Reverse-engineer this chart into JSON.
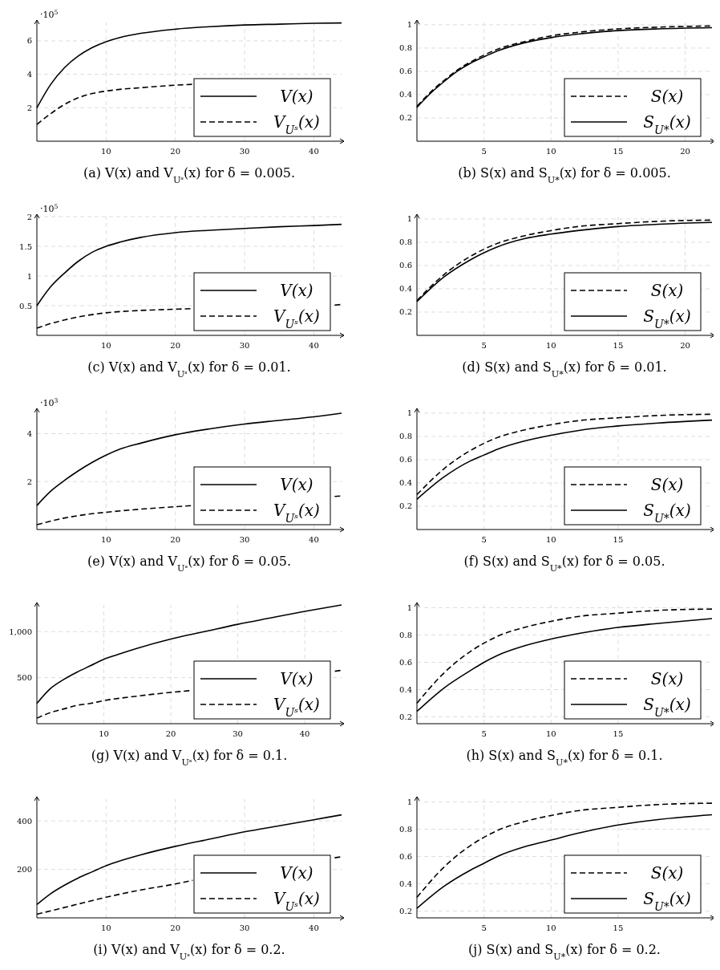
{
  "chart_data": [
    {
      "type": "line",
      "title": "(a) V(x) and V$_{Uˢ}$(x) for δ = 0.005.",
      "annotations": [
        "·10$^{5}$"
      ],
      "xlim": [
        0,
        44
      ],
      "xticks": [
        10,
        20,
        30,
        40
      ],
      "ylim": [
        0,
        7.1
      ],
      "yticks": [
        2,
        4,
        6
      ],
      "grid": true,
      "legend": "bottom right",
      "series": [
        {
          "name": "V(x)",
          "color": "#000000",
          "line_style": "solid",
          "x": [
            0,
            2,
            4,
            6,
            8,
            10,
            12,
            15,
            20,
            25,
            30,
            35,
            40,
            44
          ],
          "values": [
            2,
            3.4,
            4.4,
            5.1,
            5.6,
            5.95,
            6.2,
            6.45,
            6.7,
            6.85,
            6.95,
            7.0,
            7.05,
            7.07
          ]
        },
        {
          "name": "V$_{Uˢ}$(x)",
          "color": "#000000",
          "line_style": "dashed",
          "x": [
            0,
            2,
            4,
            6,
            8,
            10,
            12,
            15,
            20,
            22.5
          ],
          "values": [
            1,
            1.65,
            2.2,
            2.6,
            2.85,
            3.0,
            3.1,
            3.2,
            3.35,
            3.4
          ]
        }
      ]
    },
    {
      "type": "line",
      "title": "(b) S(x) and S$_{U*}$(x) for δ = 0.005.",
      "xlim": [
        0,
        22
      ],
      "xticks": [
        5,
        10,
        15,
        20
      ],
      "ylim": [
        0,
        1.02
      ],
      "yticks": [
        0.2,
        0.4,
        0.6,
        0.8,
        1
      ],
      "grid": true,
      "legend": "bottom right",
      "series": [
        {
          "name": "S(x)",
          "color": "#000000",
          "line_style": "dashed",
          "x": [
            0,
            1,
            2,
            3,
            4,
            5,
            6,
            8,
            10,
            12,
            15,
            18,
            22
          ],
          "values": [
            0.3,
            0.42,
            0.52,
            0.61,
            0.68,
            0.74,
            0.79,
            0.855,
            0.905,
            0.935,
            0.965,
            0.98,
            0.99
          ]
        },
        {
          "name": "S$_{U*}$(x)",
          "color": "#000000",
          "line_style": "solid",
          "x": [
            0,
            1,
            2,
            3,
            4,
            5,
            6,
            8,
            10,
            12,
            15,
            18,
            22
          ],
          "values": [
            0.29,
            0.41,
            0.51,
            0.6,
            0.67,
            0.725,
            0.775,
            0.845,
            0.89,
            0.92,
            0.95,
            0.965,
            0.975
          ]
        }
      ]
    },
    {
      "type": "line",
      "title": "(c) V(x) and V$_{Uˢ}$(x) for δ = 0.01.",
      "annotations": [
        "·10$^{5}$"
      ],
      "xlim": [
        0,
        44
      ],
      "xticks": [
        10,
        20,
        30,
        40
      ],
      "ylim": [
        0,
        2
      ],
      "yticks": [
        0.5,
        1,
        1.5,
        2
      ],
      "grid": true,
      "legend": "bottom right",
      "series": [
        {
          "name": "V(x)",
          "color": "#000000",
          "line_style": "solid",
          "x": [
            0,
            2,
            4,
            6,
            8,
            10,
            12,
            15,
            20,
            25,
            30,
            35,
            40,
            44
          ],
          "values": [
            0.5,
            0.82,
            1.05,
            1.25,
            1.4,
            1.5,
            1.57,
            1.65,
            1.73,
            1.77,
            1.8,
            1.83,
            1.85,
            1.87
          ]
        },
        {
          "name": "V$_{Uˢ}$(x)",
          "color": "#000000",
          "line_style": "dashed",
          "x": [
            0,
            2,
            4,
            6,
            8,
            10,
            15,
            20,
            22.5,
            33,
            43,
            44
          ],
          "values": [
            0.12,
            0.2,
            0.26,
            0.31,
            0.35,
            0.38,
            0.42,
            0.44,
            0.45,
            null,
            0.51,
            0.52
          ]
        }
      ]
    },
    {
      "type": "line",
      "title": "(d) S(x) and S$_{U*}$(x) for δ = 0.01.",
      "xlim": [
        0,
        22
      ],
      "xticks": [
        5,
        10,
        15,
        20
      ],
      "ylim": [
        0,
        1.02
      ],
      "yticks": [
        0.2,
        0.4,
        0.6,
        0.8,
        1
      ],
      "grid": true,
      "legend": "bottom right",
      "series": [
        {
          "name": "S(x)",
          "color": "#000000",
          "line_style": "dashed",
          "x": [
            0,
            2,
            4,
            5,
            6,
            8,
            10,
            12,
            15,
            18,
            22
          ],
          "values": [
            0.3,
            0.52,
            0.68,
            0.74,
            0.79,
            0.855,
            0.9,
            0.935,
            0.96,
            0.98,
            0.99
          ]
        },
        {
          "name": "S$_{U*}$(x)",
          "color": "#000000",
          "line_style": "solid",
          "x": [
            0,
            2,
            4,
            5,
            6,
            8,
            10,
            12,
            15,
            18,
            22
          ],
          "values": [
            0.29,
            0.5,
            0.65,
            0.71,
            0.76,
            0.83,
            0.87,
            0.9,
            0.935,
            0.955,
            0.97
          ]
        }
      ]
    },
    {
      "type": "line",
      "title": "(e) V(x) and V$_{Uˢ}$(x) for δ = 0.05.",
      "annotations": [
        "·10$^{3}$"
      ],
      "xlim": [
        0,
        44
      ],
      "xticks": [
        10,
        20,
        30,
        40
      ],
      "ylim": [
        0,
        4.95
      ],
      "yticks": [
        2,
        4
      ],
      "grid": true,
      "legend": "bottom right",
      "series": [
        {
          "name": "V(x)",
          "color": "#000000",
          "line_style": "solid",
          "x": [
            0,
            2,
            4,
            6,
            8,
            10,
            12,
            15,
            20,
            25,
            30,
            35,
            40,
            44
          ],
          "values": [
            1,
            1.6,
            2.05,
            2.45,
            2.8,
            3.1,
            3.35,
            3.6,
            3.95,
            4.2,
            4.4,
            4.55,
            4.7,
            4.85
          ]
        },
        {
          "name": "V$_{Uˢ}$(x)",
          "color": "#000000",
          "line_style": "dashed",
          "x": [
            0,
            2,
            4,
            6,
            8,
            10,
            15,
            20,
            22.5,
            33,
            43,
            44
          ],
          "values": [
            0.2,
            0.35,
            0.48,
            0.58,
            0.66,
            0.72,
            0.85,
            0.95,
            1.0,
            null,
            1.38,
            1.4
          ]
        }
      ]
    },
    {
      "type": "line",
      "title": "(f) S(x) and S$_{U*}$(x) for δ = 0.05.",
      "xlim": [
        0,
        22
      ],
      "xticks": [
        5,
        10,
        15
      ],
      "ylim": [
        0,
        1.02
      ],
      "yticks": [
        0.2,
        0.4,
        0.6,
        0.8,
        1
      ],
      "grid": true,
      "legend": "bottom right",
      "series": [
        {
          "name": "S(x)",
          "color": "#000000",
          "line_style": "dashed",
          "x": [
            0,
            2,
            4,
            5,
            6,
            8,
            10,
            12,
            15,
            18,
            22
          ],
          "values": [
            0.3,
            0.52,
            0.68,
            0.74,
            0.79,
            0.855,
            0.9,
            0.935,
            0.96,
            0.98,
            0.99
          ]
        },
        {
          "name": "S$_{U*}$(x)",
          "color": "#000000",
          "line_style": "solid",
          "x": [
            0,
            2,
            4,
            5,
            6,
            8,
            10,
            12,
            15,
            18,
            22
          ],
          "values": [
            0.26,
            0.45,
            0.59,
            0.64,
            0.69,
            0.76,
            0.81,
            0.85,
            0.89,
            0.915,
            0.94
          ]
        }
      ]
    },
    {
      "type": "line",
      "title": "(g) V(x) and V$_{Uˢ}$(x) for δ = 0.1.",
      "xlim": [
        0,
        45.5
      ],
      "xticks": [
        10,
        20,
        30,
        40
      ],
      "ylim": [
        0,
        1290
      ],
      "yticks": [
        500,
        {
          "value": 1000,
          "label": "1,000"
        }
      ],
      "grid": true,
      "legend": "bottom right",
      "series": [
        {
          "name": "V(x)",
          "color": "#000000",
          "line_style": "solid",
          "x": [
            0,
            2,
            4,
            6,
            8,
            10,
            12,
            15,
            20,
            25,
            30,
            35,
            40,
            45.5
          ],
          "values": [
            220,
            380,
            480,
            560,
            630,
            700,
            750,
            820,
            920,
            1000,
            1080,
            1150,
            1220,
            1290
          ]
        },
        {
          "name": "V$_{Uˢ}$(x)",
          "color": "#000000",
          "line_style": "dashed",
          "x": [
            0,
            2,
            4,
            6,
            8,
            10,
            15,
            20,
            23,
            34,
            44.5,
            45.5
          ],
          "values": [
            60,
            120,
            160,
            200,
            220,
            250,
            300,
            340,
            360,
            null,
            570,
            580
          ]
        }
      ]
    },
    {
      "type": "line",
      "title": "(h) S(x) and S$_{U*}$(x) for δ = 0.1.",
      "xlim": [
        0,
        22
      ],
      "xticks": [
        5,
        10,
        15
      ],
      "ylim": [
        0.15,
        1.02
      ],
      "yticks": [
        0.2,
        0.4,
        0.6,
        0.8,
        1
      ],
      "grid": true,
      "legend": "bottom right",
      "series": [
        {
          "name": "S(x)",
          "color": "#000000",
          "line_style": "dashed",
          "x": [
            0,
            2,
            4,
            5,
            6,
            8,
            10,
            12,
            15,
            18,
            22
          ],
          "values": [
            0.3,
            0.52,
            0.68,
            0.74,
            0.79,
            0.855,
            0.9,
            0.935,
            0.96,
            0.98,
            0.99
          ]
        },
        {
          "name": "S$_{U*}$(x)",
          "color": "#000000",
          "line_style": "solid",
          "x": [
            0,
            2,
            4,
            5,
            6,
            8,
            10,
            12,
            15,
            18,
            22
          ],
          "values": [
            0.24,
            0.41,
            0.54,
            0.6,
            0.65,
            0.72,
            0.77,
            0.81,
            0.855,
            0.885,
            0.92
          ]
        }
      ]
    },
    {
      "type": "line",
      "title": "(i) V(x) and V$_{Uˢ}$(x) for δ = 0.2.",
      "xlim": [
        0,
        44
      ],
      "xticks": [
        10,
        20,
        30,
        40
      ],
      "ylim": [
        0,
        490
      ],
      "yticks": [
        200,
        400
      ],
      "grid": true,
      "legend": "bottom right",
      "series": [
        {
          "name": "V(x)",
          "color": "#000000",
          "line_style": "solid",
          "x": [
            0,
            2,
            4,
            6,
            8,
            10,
            12,
            15,
            20,
            25,
            30,
            35,
            40,
            44
          ],
          "values": [
            55,
            100,
            135,
            165,
            190,
            215,
            235,
            260,
            295,
            325,
            355,
            380,
            405,
            425
          ]
        },
        {
          "name": "V$_{Uˢ}$(x)",
          "color": "#000000",
          "line_style": "dashed",
          "x": [
            0,
            5,
            10,
            15,
            20,
            22.5,
            33,
            43,
            44
          ],
          "values": [
            15,
            50,
            85,
            115,
            140,
            155,
            null,
            248,
            252
          ]
        }
      ]
    },
    {
      "type": "line",
      "title": "(j) S(x) and S$_{U*}$(x) for δ = 0.2.",
      "xlim": [
        0,
        22
      ],
      "xticks": [
        5,
        10,
        15
      ],
      "ylim": [
        0.15,
        1.02
      ],
      "yticks": [
        0.2,
        0.4,
        0.6,
        0.8,
        1
      ],
      "grid": true,
      "legend": "bottom right",
      "series": [
        {
          "name": "S(x)",
          "color": "#000000",
          "line_style": "dashed",
          "x": [
            0,
            2,
            4,
            5,
            6,
            8,
            10,
            12,
            15,
            18,
            22
          ],
          "values": [
            0.3,
            0.52,
            0.68,
            0.74,
            0.79,
            0.855,
            0.9,
            0.935,
            0.96,
            0.98,
            0.99
          ]
        },
        {
          "name": "S$_{U*}$(x)",
          "color": "#000000",
          "line_style": "solid",
          "x": [
            0,
            2,
            4,
            5,
            6,
            8,
            10,
            12,
            15,
            18,
            22
          ],
          "values": [
            0.22,
            0.38,
            0.5,
            0.55,
            0.6,
            0.67,
            0.72,
            0.77,
            0.83,
            0.87,
            0.905
          ]
        }
      ]
    }
  ]
}
